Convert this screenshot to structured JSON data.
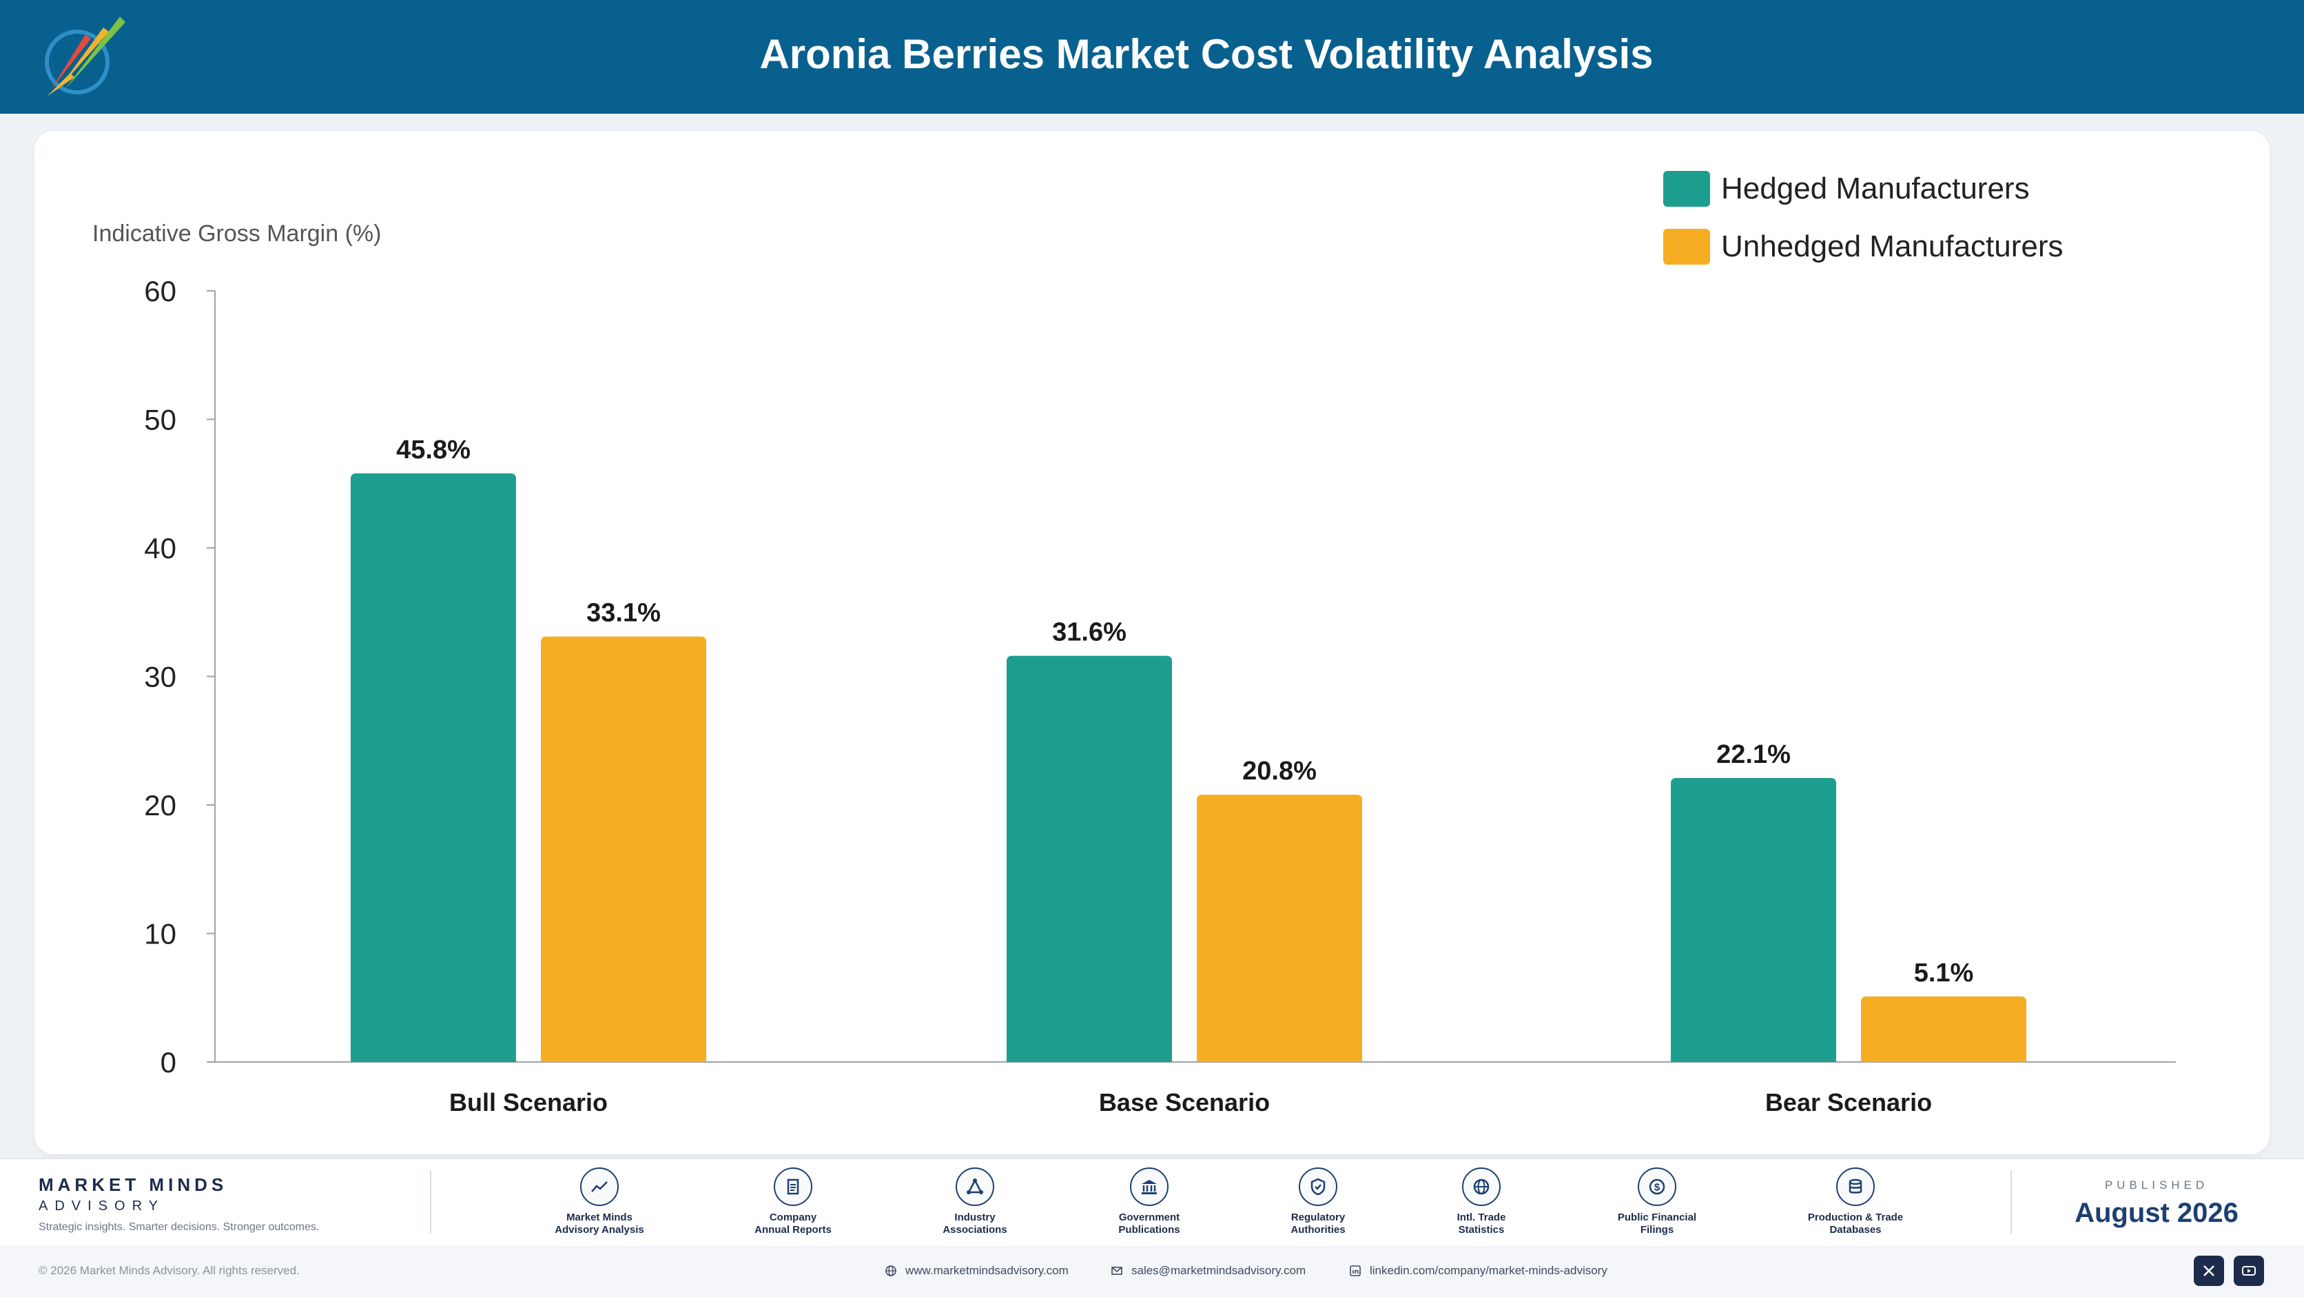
{
  "page": {
    "title": "Aronia Berries Market Cost Volatility Analysis",
    "colors": {
      "header": "#08608f",
      "hedged": "#1e9e8f",
      "unhedged": "#f7ad23"
    }
  },
  "chart_data": {
    "type": "bar",
    "title": "",
    "xlabel": "",
    "ylabel": "Indicative Gross Margin (%)",
    "categories": [
      "Bull Scenario",
      "Base Scenario",
      "Bear Scenario"
    ],
    "series": [
      {
        "name": "Hedged Manufacturers",
        "values": [
          45.8,
          31.6,
          22.1
        ],
        "labels": [
          "45.8%",
          "31.6%",
          "22.1%"
        ],
        "color": "#1e9e8f"
      },
      {
        "name": "Unhedged Manufacturers",
        "values": [
          33.1,
          20.8,
          5.1
        ],
        "labels": [
          "33.1%",
          "20.8%",
          "5.1%"
        ],
        "color": "#f7ad23"
      }
    ],
    "yticks": [
      0,
      10,
      20,
      30,
      40,
      50,
      60
    ],
    "ylim": [
      0,
      60
    ],
    "grid": false,
    "legend": "top-right"
  },
  "footer": {
    "brand_name": "MARKET MINDS",
    "brand_sub": "ADVISORY",
    "tagline": "Strategic insights. Smarter decisions. Stronger outcomes.",
    "sources": [
      {
        "line1": "Market Minds",
        "line2": "Advisory Analysis",
        "icon": "chart-line-icon"
      },
      {
        "line1": "Company",
        "line2": "Annual Reports",
        "icon": "document-icon"
      },
      {
        "line1": "Industry",
        "line2": "Associations",
        "icon": "network-icon"
      },
      {
        "line1": "Government",
        "line2": "Publications",
        "icon": "government-building-icon"
      },
      {
        "line1": "Regulatory",
        "line2": "Authorities",
        "icon": "shield-check-icon"
      },
      {
        "line1": "Intl. Trade",
        "line2": "Statistics",
        "icon": "globe-icon"
      },
      {
        "line1": "Public Financial",
        "line2": "Filings",
        "icon": "dollar-coin-icon"
      },
      {
        "line1": "Production & Trade",
        "line2": "Databases",
        "icon": "database-icon"
      }
    ],
    "published_label": "PUBLISHED",
    "published_date": "August 2026",
    "copyright": "© 2026 Market Minds Advisory. All rights reserved.",
    "website": "www.marketmindsadvisory.com",
    "email": "sales@marketmindsadvisory.com",
    "linkedin": "linkedin.com/company/market-minds-advisory"
  }
}
